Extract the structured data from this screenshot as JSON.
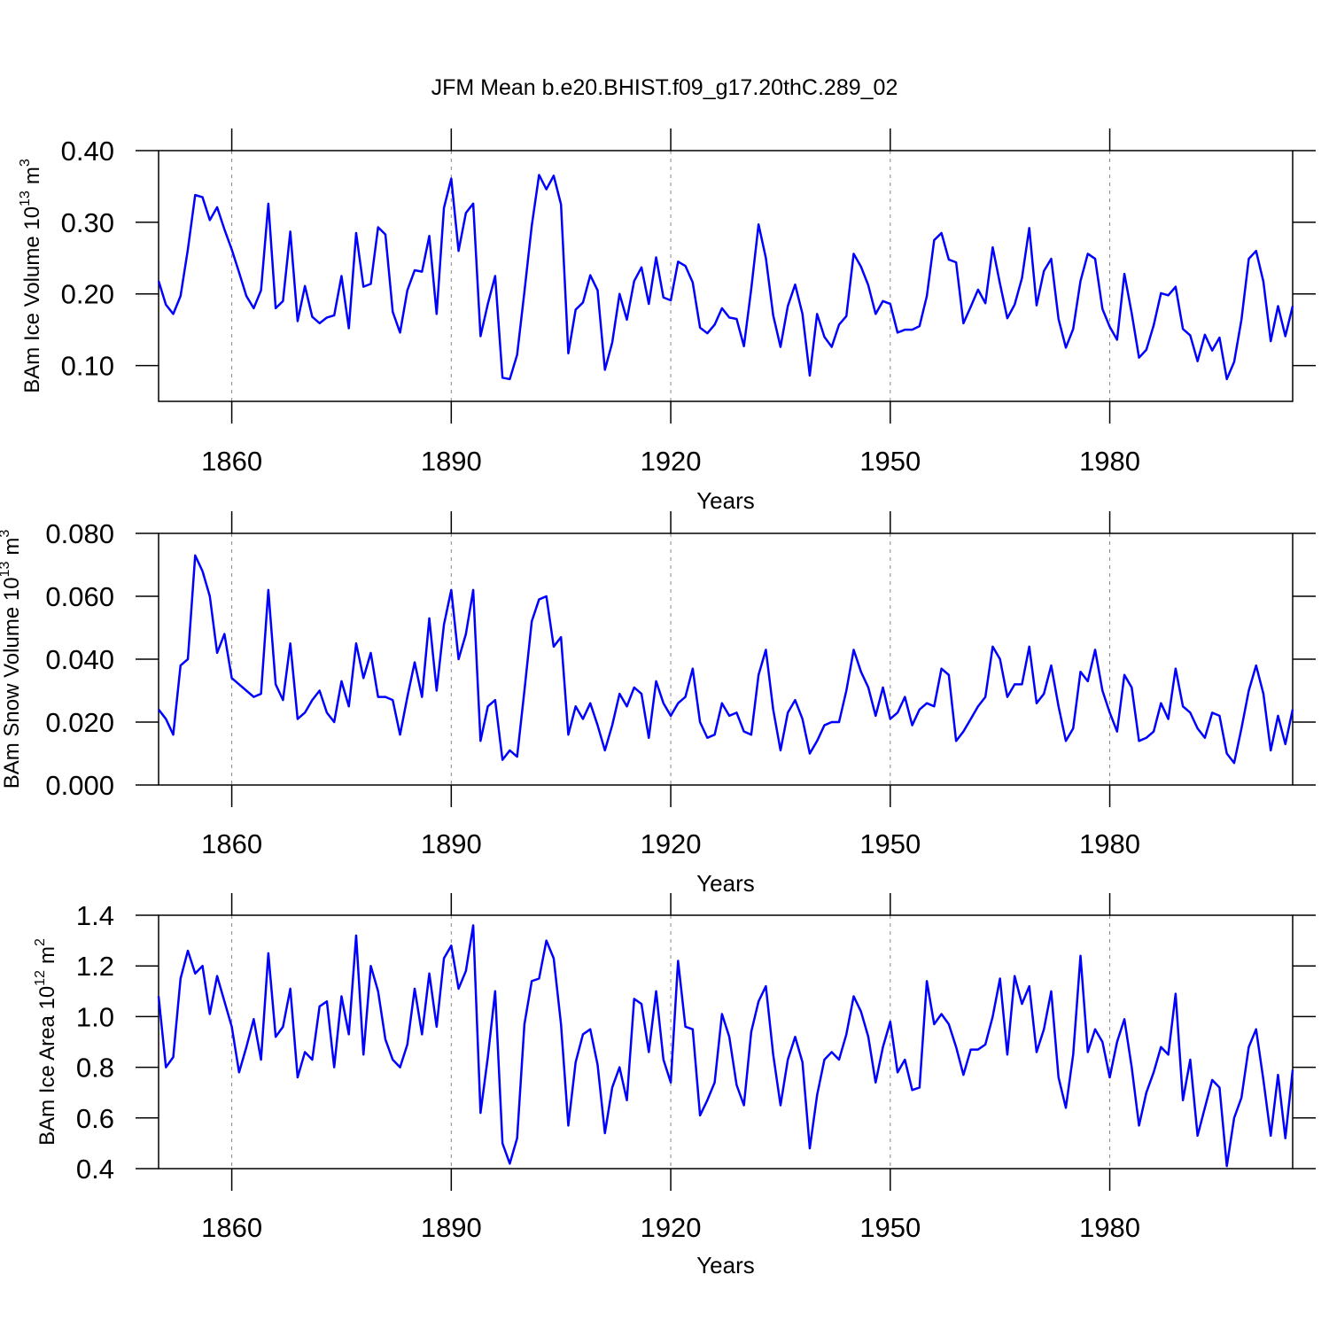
{
  "chart_data": [
    {
      "type": "line",
      "title": "JFM Mean b.e20.BHIST.f09_g17.20thC.289_02",
      "xlabel": "Years",
      "ylabel": {
        "base": "BAm Ice Volume 10",
        "base_exp": "13",
        "unit": "m",
        "unit_exp": "3"
      },
      "color": "#0000ff",
      "grid": true,
      "xlim": [
        1850,
        2005
      ],
      "xticks": [
        1860,
        1890,
        1920,
        1950,
        1980
      ],
      "ylim": [
        0.05,
        0.4
      ],
      "yticks": [
        {
          "value": 0.1,
          "label": "0.10"
        },
        {
          "value": 0.2,
          "label": "0.20"
        },
        {
          "value": 0.3,
          "label": "0.30"
        },
        {
          "value": 0.4,
          "label": "0.40"
        }
      ],
      "x": [
        1850,
        1851,
        1852,
        1853,
        1854,
        1855,
        1856,
        1857,
        1858,
        1859,
        1860,
        1861,
        1862,
        1863,
        1864,
        1865,
        1866,
        1867,
        1868,
        1869,
        1870,
        1871,
        1872,
        1873,
        1874,
        1875,
        1876,
        1877,
        1878,
        1879,
        1880,
        1881,
        1882,
        1883,
        1884,
        1885,
        1886,
        1887,
        1888,
        1889,
        1890,
        1891,
        1892,
        1893,
        1894,
        1895,
        1896,
        1897,
        1898,
        1899,
        1900,
        1901,
        1902,
        1903,
        1904,
        1905,
        1906,
        1907,
        1908,
        1909,
        1910,
        1911,
        1912,
        1913,
        1914,
        1915,
        1916,
        1917,
        1918,
        1919,
        1920,
        1921,
        1922,
        1923,
        1924,
        1925,
        1926,
        1927,
        1928,
        1929,
        1930,
        1931,
        1932,
        1933,
        1934,
        1935,
        1936,
        1937,
        1938,
        1939,
        1940,
        1941,
        1942,
        1943,
        1944,
        1945,
        1946,
        1947,
        1948,
        1949,
        1950,
        1951,
        1952,
        1953,
        1954,
        1955,
        1956,
        1957,
        1958,
        1959,
        1960,
        1961,
        1962,
        1963,
        1964,
        1965,
        1966,
        1967,
        1968,
        1969,
        1970,
        1971,
        1972,
        1973,
        1974,
        1975,
        1976,
        1977,
        1978,
        1979,
        1980,
        1981,
        1982,
        1983,
        1984,
        1985,
        1986,
        1987,
        1988,
        1989,
        1990,
        1991,
        1992,
        1993,
        1994,
        1995,
        1996,
        1997,
        1998,
        1999,
        2000,
        2001,
        2002,
        2003,
        2004,
        2005
      ],
      "values": [
        0.218,
        0.185,
        0.172,
        0.197,
        0.262,
        0.338,
        0.335,
        0.303,
        0.321,
        0.29,
        0.262,
        0.23,
        0.197,
        0.18,
        0.205,
        0.326,
        0.18,
        0.19,
        0.287,
        0.162,
        0.211,
        0.168,
        0.159,
        0.167,
        0.17,
        0.225,
        0.152,
        0.285,
        0.21,
        0.214,
        0.293,
        0.283,
        0.175,
        0.146,
        0.205,
        0.233,
        0.231,
        0.281,
        0.172,
        0.32,
        0.361,
        0.26,
        0.313,
        0.326,
        0.141,
        0.186,
        0.225,
        0.083,
        0.081,
        0.115,
        0.203,
        0.295,
        0.366,
        0.346,
        0.365,
        0.325,
        0.117,
        0.178,
        0.188,
        0.226,
        0.205,
        0.094,
        0.132,
        0.2,
        0.164,
        0.218,
        0.237,
        0.186,
        0.251,
        0.195,
        0.191,
        0.245,
        0.239,
        0.216,
        0.153,
        0.145,
        0.157,
        0.18,
        0.167,
        0.165,
        0.127,
        0.207,
        0.297,
        0.25,
        0.17,
        0.126,
        0.183,
        0.213,
        0.172,
        0.086,
        0.172,
        0.14,
        0.126,
        0.157,
        0.169,
        0.256,
        0.238,
        0.212,
        0.172,
        0.19,
        0.186,
        0.146,
        0.15,
        0.15,
        0.155,
        0.197,
        0.275,
        0.285,
        0.248,
        0.244,
        0.159,
        0.182,
        0.206,
        0.187,
        0.265,
        0.214,
        0.166,
        0.185,
        0.222,
        0.292,
        0.184,
        0.232,
        0.249,
        0.165,
        0.125,
        0.151,
        0.218,
        0.256,
        0.249,
        0.179,
        0.154,
        0.136,
        0.228,
        0.173,
        0.111,
        0.122,
        0.156,
        0.201,
        0.198,
        0.21,
        0.151,
        0.142,
        0.106,
        0.143,
        0.121,
        0.139,
        0.081,
        0.105,
        0.164,
        0.249,
        0.26,
        0.217,
        0.134,
        0.183,
        0.141,
        0.183
      ]
    },
    {
      "type": "line",
      "xlabel": "Years",
      "ylabel": {
        "base": "BAm Snow Volume 10",
        "base_exp": "13",
        "unit": "m",
        "unit_exp": "3"
      },
      "color": "#0000ff",
      "grid": true,
      "xlim": [
        1850,
        2005
      ],
      "xticks": [
        1860,
        1890,
        1920,
        1950,
        1980
      ],
      "ylim": [
        0,
        0.08
      ],
      "yticks": [
        {
          "value": 0,
          "label": "0.000"
        },
        {
          "value": 0.02,
          "label": "0.020"
        },
        {
          "value": 0.04,
          "label": "0.040"
        },
        {
          "value": 0.06,
          "label": "0.060"
        },
        {
          "value": 0.08,
          "label": "0.080"
        }
      ],
      "x": [
        1850,
        1851,
        1852,
        1853,
        1854,
        1855,
        1856,
        1857,
        1858,
        1859,
        1860,
        1861,
        1862,
        1863,
        1864,
        1865,
        1866,
        1867,
        1868,
        1869,
        1870,
        1871,
        1872,
        1873,
        1874,
        1875,
        1876,
        1877,
        1878,
        1879,
        1880,
        1881,
        1882,
        1883,
        1884,
        1885,
        1886,
        1887,
        1888,
        1889,
        1890,
        1891,
        1892,
        1893,
        1894,
        1895,
        1896,
        1897,
        1898,
        1899,
        1900,
        1901,
        1902,
        1903,
        1904,
        1905,
        1906,
        1907,
        1908,
        1909,
        1910,
        1911,
        1912,
        1913,
        1914,
        1915,
        1916,
        1917,
        1918,
        1919,
        1920,
        1921,
        1922,
        1923,
        1924,
        1925,
        1926,
        1927,
        1928,
        1929,
        1930,
        1931,
        1932,
        1933,
        1934,
        1935,
        1936,
        1937,
        1938,
        1939,
        1940,
        1941,
        1942,
        1943,
        1944,
        1945,
        1946,
        1947,
        1948,
        1949,
        1950,
        1951,
        1952,
        1953,
        1954,
        1955,
        1956,
        1957,
        1958,
        1959,
        1960,
        1961,
        1962,
        1963,
        1964,
        1965,
        1966,
        1967,
        1968,
        1969,
        1970,
        1971,
        1972,
        1973,
        1974,
        1975,
        1976,
        1977,
        1978,
        1979,
        1980,
        1981,
        1982,
        1983,
        1984,
        1985,
        1986,
        1987,
        1988,
        1989,
        1990,
        1991,
        1992,
        1993,
        1994,
        1995,
        1996,
        1997,
        1998,
        1999,
        2000,
        2001,
        2002,
        2003,
        2004,
        2005
      ],
      "values": [
        0.024,
        0.021,
        0.016,
        0.038,
        0.04,
        0.073,
        0.068,
        0.06,
        0.042,
        0.048,
        0.034,
        0.032,
        0.03,
        0.028,
        0.029,
        0.062,
        0.032,
        0.027,
        0.045,
        0.021,
        0.023,
        0.027,
        0.03,
        0.023,
        0.02,
        0.033,
        0.025,
        0.045,
        0.034,
        0.042,
        0.028,
        0.028,
        0.027,
        0.016,
        0.028,
        0.039,
        0.028,
        0.053,
        0.03,
        0.051,
        0.062,
        0.04,
        0.048,
        0.062,
        0.014,
        0.025,
        0.027,
        0.008,
        0.011,
        0.009,
        0.03,
        0.052,
        0.059,
        0.06,
        0.044,
        0.047,
        0.016,
        0.025,
        0.021,
        0.026,
        0.019,
        0.011,
        0.019,
        0.029,
        0.025,
        0.031,
        0.029,
        0.015,
        0.033,
        0.026,
        0.022,
        0.026,
        0.028,
        0.037,
        0.02,
        0.015,
        0.016,
        0.026,
        0.022,
        0.023,
        0.017,
        0.016,
        0.035,
        0.043,
        0.024,
        0.011,
        0.023,
        0.027,
        0.021,
        0.01,
        0.014,
        0.019,
        0.02,
        0.02,
        0.03,
        0.043,
        0.036,
        0.031,
        0.022,
        0.031,
        0.021,
        0.023,
        0.028,
        0.019,
        0.024,
        0.026,
        0.025,
        0.037,
        0.035,
        0.014,
        0.017,
        0.021,
        0.025,
        0.028,
        0.044,
        0.04,
        0.028,
        0.032,
        0.032,
        0.044,
        0.026,
        0.029,
        0.038,
        0.025,
        0.014,
        0.018,
        0.036,
        0.033,
        0.043,
        0.03,
        0.023,
        0.017,
        0.035,
        0.031,
        0.014,
        0.015,
        0.017,
        0.026,
        0.021,
        0.037,
        0.025,
        0.023,
        0.018,
        0.015,
        0.023,
        0.022,
        0.01,
        0.007,
        0.018,
        0.03,
        0.038,
        0.029,
        0.011,
        0.022,
        0.013,
        0.024
      ]
    },
    {
      "type": "line",
      "xlabel": "Years",
      "ylabel": {
        "base": "BAm Ice Area 10",
        "base_exp": "12",
        "unit": "m",
        "unit_exp": "2"
      },
      "color": "#0000ff",
      "grid": true,
      "xlim": [
        1850,
        2005
      ],
      "xticks": [
        1860,
        1890,
        1920,
        1950,
        1980
      ],
      "ylim": [
        0.4,
        1.4
      ],
      "yticks": [
        0.4,
        0.6,
        0.8,
        {
          "value": 1,
          "label": "1.0"
        },
        1.2,
        1.4
      ],
      "x": [
        1850,
        1851,
        1852,
        1853,
        1854,
        1855,
        1856,
        1857,
        1858,
        1859,
        1860,
        1861,
        1862,
        1863,
        1864,
        1865,
        1866,
        1867,
        1868,
        1869,
        1870,
        1871,
        1872,
        1873,
        1874,
        1875,
        1876,
        1877,
        1878,
        1879,
        1880,
        1881,
        1882,
        1883,
        1884,
        1885,
        1886,
        1887,
        1888,
        1889,
        1890,
        1891,
        1892,
        1893,
        1894,
        1895,
        1896,
        1897,
        1898,
        1899,
        1900,
        1901,
        1902,
        1903,
        1904,
        1905,
        1906,
        1907,
        1908,
        1909,
        1910,
        1911,
        1912,
        1913,
        1914,
        1915,
        1916,
        1917,
        1918,
        1919,
        1920,
        1921,
        1922,
        1923,
        1924,
        1925,
        1926,
        1927,
        1928,
        1929,
        1930,
        1931,
        1932,
        1933,
        1934,
        1935,
        1936,
        1937,
        1938,
        1939,
        1940,
        1941,
        1942,
        1943,
        1944,
        1945,
        1946,
        1947,
        1948,
        1949,
        1950,
        1951,
        1952,
        1953,
        1954,
        1955,
        1956,
        1957,
        1958,
        1959,
        1960,
        1961,
        1962,
        1963,
        1964,
        1965,
        1966,
        1967,
        1968,
        1969,
        1970,
        1971,
        1972,
        1973,
        1974,
        1975,
        1976,
        1977,
        1978,
        1979,
        1980,
        1981,
        1982,
        1983,
        1984,
        1985,
        1986,
        1987,
        1988,
        1989,
        1990,
        1991,
        1992,
        1993,
        1994,
        1995,
        1996,
        1997,
        1998,
        1999,
        2000,
        2001,
        2002,
        2003,
        2004,
        2005
      ],
      "values": [
        1.08,
        0.8,
        0.84,
        1.15,
        1.26,
        1.17,
        1.2,
        1.01,
        1.16,
        1.06,
        0.96,
        0.78,
        0.88,
        0.99,
        0.83,
        1.25,
        0.92,
        0.96,
        1.11,
        0.76,
        0.86,
        0.83,
        1.04,
        1.06,
        0.8,
        1.08,
        0.93,
        1.32,
        0.85,
        1.2,
        1.1,
        0.91,
        0.83,
        0.8,
        0.89,
        1.11,
        0.93,
        1.17,
        0.96,
        1.23,
        1.28,
        1.11,
        1.18,
        1.36,
        0.62,
        0.84,
        1.1,
        0.5,
        0.42,
        0.52,
        0.97,
        1.14,
        1.15,
        1.3,
        1.23,
        0.97,
        0.57,
        0.82,
        0.93,
        0.95,
        0.81,
        0.54,
        0.72,
        0.8,
        0.67,
        1.07,
        1.05,
        0.86,
        1.1,
        0.83,
        0.74,
        1.22,
        0.96,
        0.95,
        0.61,
        0.67,
        0.74,
        1.01,
        0.92,
        0.73,
        0.65,
        0.94,
        1.06,
        1.12,
        0.85,
        0.65,
        0.83,
        0.92,
        0.82,
        0.48,
        0.69,
        0.83,
        0.86,
        0.83,
        0.93,
        1.08,
        1.02,
        0.92,
        0.74,
        0.88,
        0.98,
        0.78,
        0.83,
        0.71,
        0.72,
        1.14,
        0.97,
        1.01,
        0.97,
        0.88,
        0.77,
        0.87,
        0.87,
        0.89,
        1.0,
        1.15,
        0.85,
        1.16,
        1.05,
        1.12,
        0.86,
        0.95,
        1.1,
        0.76,
        0.64,
        0.85,
        1.24,
        0.86,
        0.95,
        0.9,
        0.76,
        0.9,
        0.99,
        0.8,
        0.57,
        0.7,
        0.78,
        0.88,
        0.85,
        1.09,
        0.67,
        0.83,
        0.53,
        0.64,
        0.75,
        0.72,
        0.41,
        0.6,
        0.68,
        0.88,
        0.95,
        0.75,
        0.53,
        0.77,
        0.52,
        0.79
      ]
    }
  ]
}
